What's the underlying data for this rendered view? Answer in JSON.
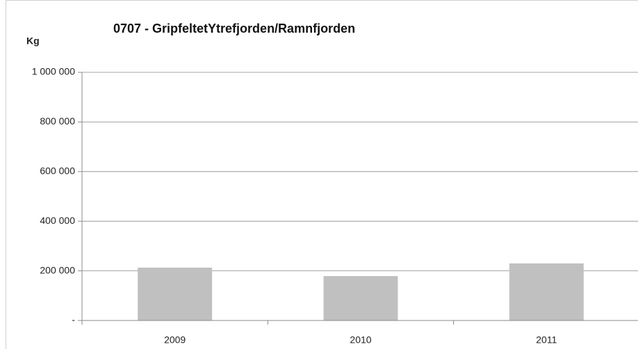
{
  "chart_data": {
    "type": "bar",
    "title": "0707 - GripfeltetYtrefjorden/Ramnfjorden",
    "y_label": "Kg",
    "categories": [
      "2009",
      "2010",
      "2011"
    ],
    "values": [
      213000,
      179000,
      230000
    ],
    "color": "#c0c0c0",
    "ylim": [
      0,
      1000000
    ],
    "yticks": [
      {
        "value": 0,
        "label": "-"
      },
      {
        "value": 200000,
        "label": "200 000"
      },
      {
        "value": 400000,
        "label": "400 000"
      },
      {
        "value": 600000,
        "label": "600 000"
      },
      {
        "value": 800000,
        "label": "800 000"
      },
      {
        "value": 1000000,
        "label": "1 000 000"
      }
    ],
    "grid": true
  }
}
